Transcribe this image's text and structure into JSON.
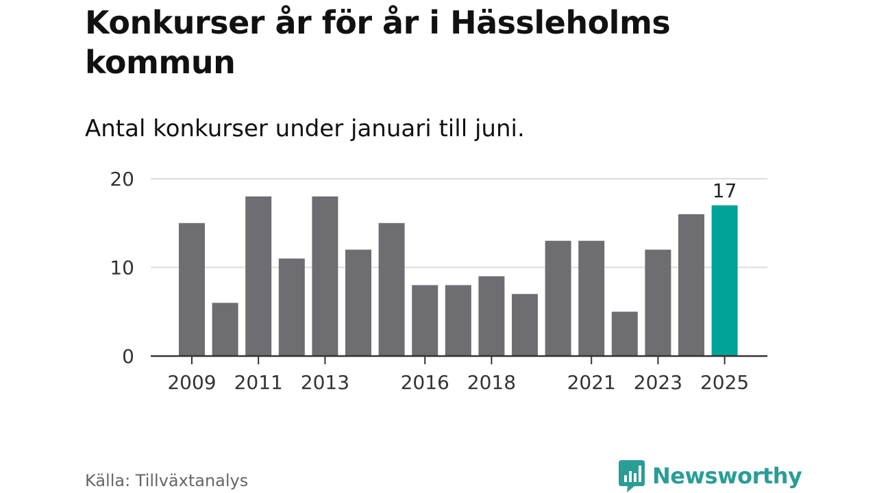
{
  "title": "Konkurser år för år i Hässleholms kommun",
  "subtitle": "Antal konkurser under januari till juni.",
  "source": "Källa: Tillväxtanalys",
  "brand": {
    "name": "Newsworthy",
    "icon": "newsworthy-logo-icon",
    "color": "#2a9d97"
  },
  "chart_data": {
    "type": "bar",
    "categories": [
      "2009",
      "2010",
      "2011",
      "2012",
      "2013",
      "2014",
      "2015",
      "2016",
      "2017",
      "2018",
      "2019",
      "2020",
      "2021",
      "2022",
      "2023",
      "2024",
      "2025"
    ],
    "values": [
      15,
      6,
      18,
      11,
      18,
      12,
      15,
      8,
      8,
      9,
      7,
      13,
      13,
      5,
      12,
      16,
      17
    ],
    "x_tick_labels": [
      "2009",
      "2011",
      "2013",
      "2016",
      "2018",
      "2021",
      "2023",
      "2025"
    ],
    "y_ticks": [
      0,
      10,
      20
    ],
    "ylim": [
      0,
      20
    ],
    "grid": true,
    "bar_color": "#6e6d72",
    "highlight_color": "#00a397",
    "highlight_category": "2025",
    "data_labels": [
      {
        "category": "2025",
        "label": "17"
      }
    ],
    "xlabel": "",
    "ylabel": ""
  }
}
